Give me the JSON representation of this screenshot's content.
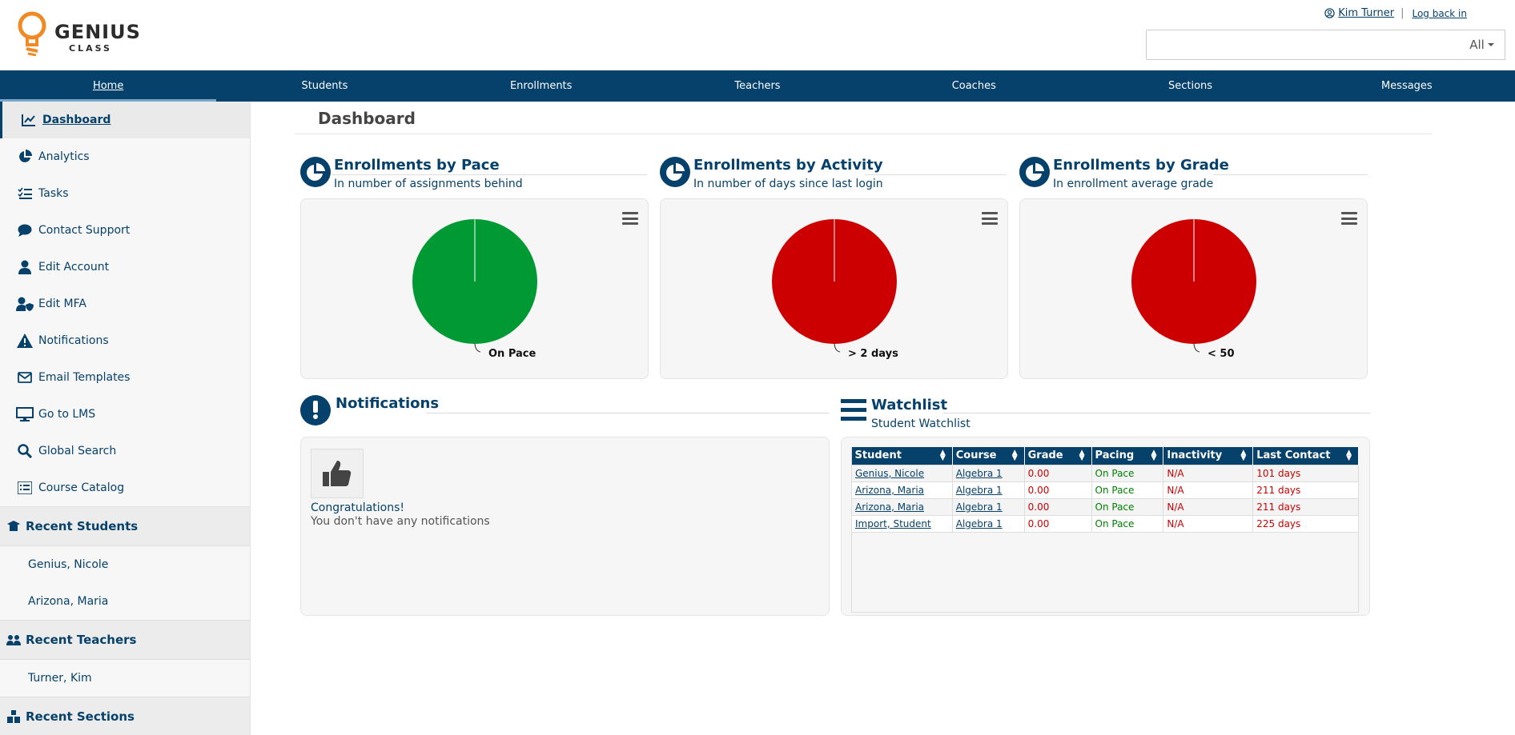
{
  "header": {
    "logo_word1": "GENIUS",
    "logo_word2": "CLASS",
    "user_name": "Kim Turner",
    "separator": "|",
    "log_back": "Log back in",
    "search_value": "",
    "search_scope": "All"
  },
  "nav": [
    "Home",
    "Students",
    "Enrollments",
    "Teachers",
    "Coaches",
    "Sections",
    "Messages"
  ],
  "sidebar": {
    "items": [
      {
        "label": "Dashboard",
        "icon": "chart-line-icon"
      },
      {
        "label": "Analytics",
        "icon": "pie-chart-icon"
      },
      {
        "label": "Tasks",
        "icon": "tasks-icon"
      },
      {
        "label": "Contact Support",
        "icon": "chat-icon"
      },
      {
        "label": "Edit Account",
        "icon": "user-icon"
      },
      {
        "label": "Edit MFA",
        "icon": "user-shield-icon"
      },
      {
        "label": "Notifications",
        "icon": "warning-icon"
      },
      {
        "label": "Email Templates",
        "icon": "envelope-icon"
      },
      {
        "label": "Go to LMS",
        "icon": "monitor-icon"
      },
      {
        "label": "Global Search",
        "icon": "search-icon"
      },
      {
        "label": "Course Catalog",
        "icon": "list-icon"
      }
    ],
    "recent_students": {
      "title": "Recent Students",
      "items": [
        "Genius, Nicole",
        "Arizona, Maria"
      ]
    },
    "recent_teachers": {
      "title": "Recent Teachers",
      "items": [
        "Turner, Kim"
      ]
    },
    "recent_sections": {
      "title": "Recent Sections"
    }
  },
  "main": {
    "title": "Dashboard",
    "charts": [
      {
        "title": "Enrollments by Pace",
        "subtitle": "In number of assignments behind",
        "slice_label": "On Pace",
        "color": "#009933"
      },
      {
        "title": "Enrollments by Activity",
        "subtitle": "In number of days since last login",
        "slice_label": "> 2 days",
        "color": "#cc0000"
      },
      {
        "title": "Enrollments by Grade",
        "subtitle": "In enrollment average grade",
        "slice_label": "< 50",
        "color": "#cc0000"
      }
    ],
    "notifications": {
      "title": "Notifications",
      "congrats": "Congratulations!",
      "message": "You don't have any notifications"
    },
    "watchlist": {
      "title": "Watchlist",
      "subtitle": "Student Watchlist",
      "columns": [
        "Student",
        "Course",
        "Grade",
        "Pacing",
        "Inactivity",
        "Last Contact"
      ],
      "rows": [
        [
          "Genius, Nicole",
          "Algebra 1",
          "0.00",
          "On Pace",
          "N/A",
          "101 days"
        ],
        [
          "Arizona, Maria",
          "Algebra 1",
          "0.00",
          "On Pace",
          "N/A",
          "211 days"
        ],
        [
          "Arizona, Maria",
          "Algebra 1",
          "0.00",
          "On Pace",
          "N/A",
          "211 days"
        ],
        [
          "Import, Student",
          "Algebra 1",
          "0.00",
          "On Pace",
          "N/A",
          "225 days"
        ]
      ]
    }
  },
  "chart_data": [
    {
      "type": "pie",
      "title": "Enrollments by Pace",
      "subtitle": "In number of assignments behind",
      "categories": [
        "On Pace"
      ],
      "values": [
        100
      ]
    },
    {
      "type": "pie",
      "title": "Enrollments by Activity",
      "subtitle": "In number of days since last login",
      "categories": [
        "> 2 days"
      ],
      "values": [
        100
      ]
    },
    {
      "type": "pie",
      "title": "Enrollments by Grade",
      "subtitle": "In enrollment average grade",
      "categories": [
        "< 50"
      ],
      "values": [
        100
      ]
    }
  ]
}
